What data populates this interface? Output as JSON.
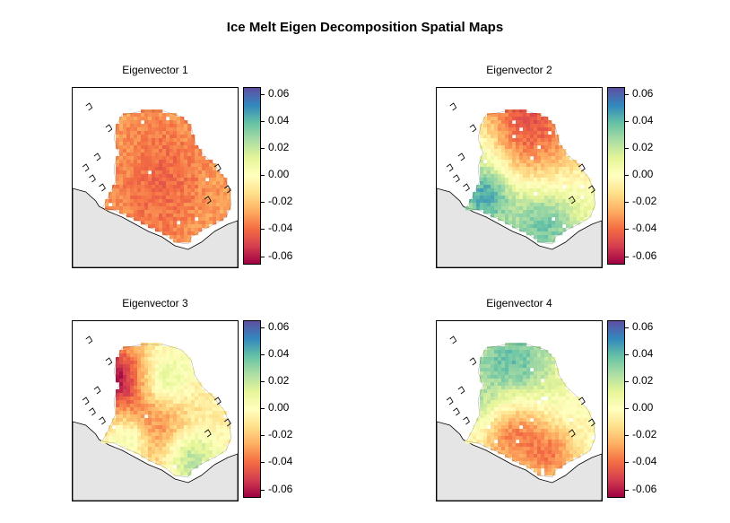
{
  "title": "Ice Melt Eigen Decomposition Spatial Maps",
  "colors": {
    "land": "#e5e5e5",
    "scale": [
      "#9e0142",
      "#d53e4f",
      "#f46d43",
      "#fdae61",
      "#fee08b",
      "#ffffbf",
      "#e6f598",
      "#abdda4",
      "#66c2a5",
      "#3288bd",
      "#5e4fa2"
    ]
  },
  "chart_data": [
    {
      "type": "heatmap",
      "title": "Eigenvector 1",
      "colorbar": {
        "range": [
          -0.065,
          0.065
        ],
        "ticks": [
          "0.06",
          "0.04",
          "0.02",
          "0.00",
          "-0.02",
          "-0.04",
          "-0.06"
        ]
      },
      "pattern": {
        "base": -0.027,
        "features": [
          [
            0.55,
            0.4,
            0.2,
            -0.01
          ],
          [
            0.5,
            0.7,
            0.2,
            -0.008
          ]
        ]
      }
    },
    {
      "type": "heatmap",
      "title": "Eigenvector 2",
      "colorbar": {
        "range": [
          -0.065,
          0.065
        ],
        "ticks": [
          "0.06",
          "0.04",
          "0.02",
          "0.00",
          "-0.02",
          "-0.04",
          "-0.06"
        ]
      },
      "pattern": {
        "base": 0.005,
        "features": [
          [
            0.55,
            0.2,
            0.25,
            -0.05
          ],
          [
            0.3,
            0.6,
            0.12,
            0.045
          ],
          [
            0.65,
            0.75,
            0.15,
            0.035
          ],
          [
            0.25,
            0.35,
            0.12,
            0.02
          ]
        ]
      }
    },
    {
      "type": "heatmap",
      "title": "Eigenvector 3",
      "colorbar": {
        "range": [
          -0.065,
          0.065
        ],
        "ticks": [
          "0.06",
          "0.04",
          "0.02",
          "0.00",
          "-0.02",
          "-0.04",
          "-0.06"
        ]
      },
      "pattern": {
        "base": -0.005,
        "features": [
          [
            0.25,
            0.3,
            0.14,
            -0.055
          ],
          [
            0.55,
            0.35,
            0.12,
            0.03
          ],
          [
            0.5,
            0.6,
            0.18,
            -0.04
          ],
          [
            0.7,
            0.75,
            0.12,
            0.04
          ],
          [
            0.35,
            0.65,
            0.1,
            0.035
          ]
        ]
      }
    },
    {
      "type": "heatmap",
      "title": "Eigenvector 4",
      "colorbar": {
        "range": [
          -0.065,
          0.065
        ],
        "ticks": [
          "0.06",
          "0.04",
          "0.02",
          "0.00",
          "-0.02",
          "-0.04",
          "-0.06"
        ]
      },
      "pattern": {
        "base": 0.0,
        "features": [
          [
            0.45,
            0.25,
            0.2,
            0.04
          ],
          [
            0.45,
            0.6,
            0.15,
            -0.04
          ],
          [
            0.7,
            0.75,
            0.12,
            -0.03
          ],
          [
            0.25,
            0.5,
            0.1,
            0.02
          ]
        ]
      }
    }
  ]
}
